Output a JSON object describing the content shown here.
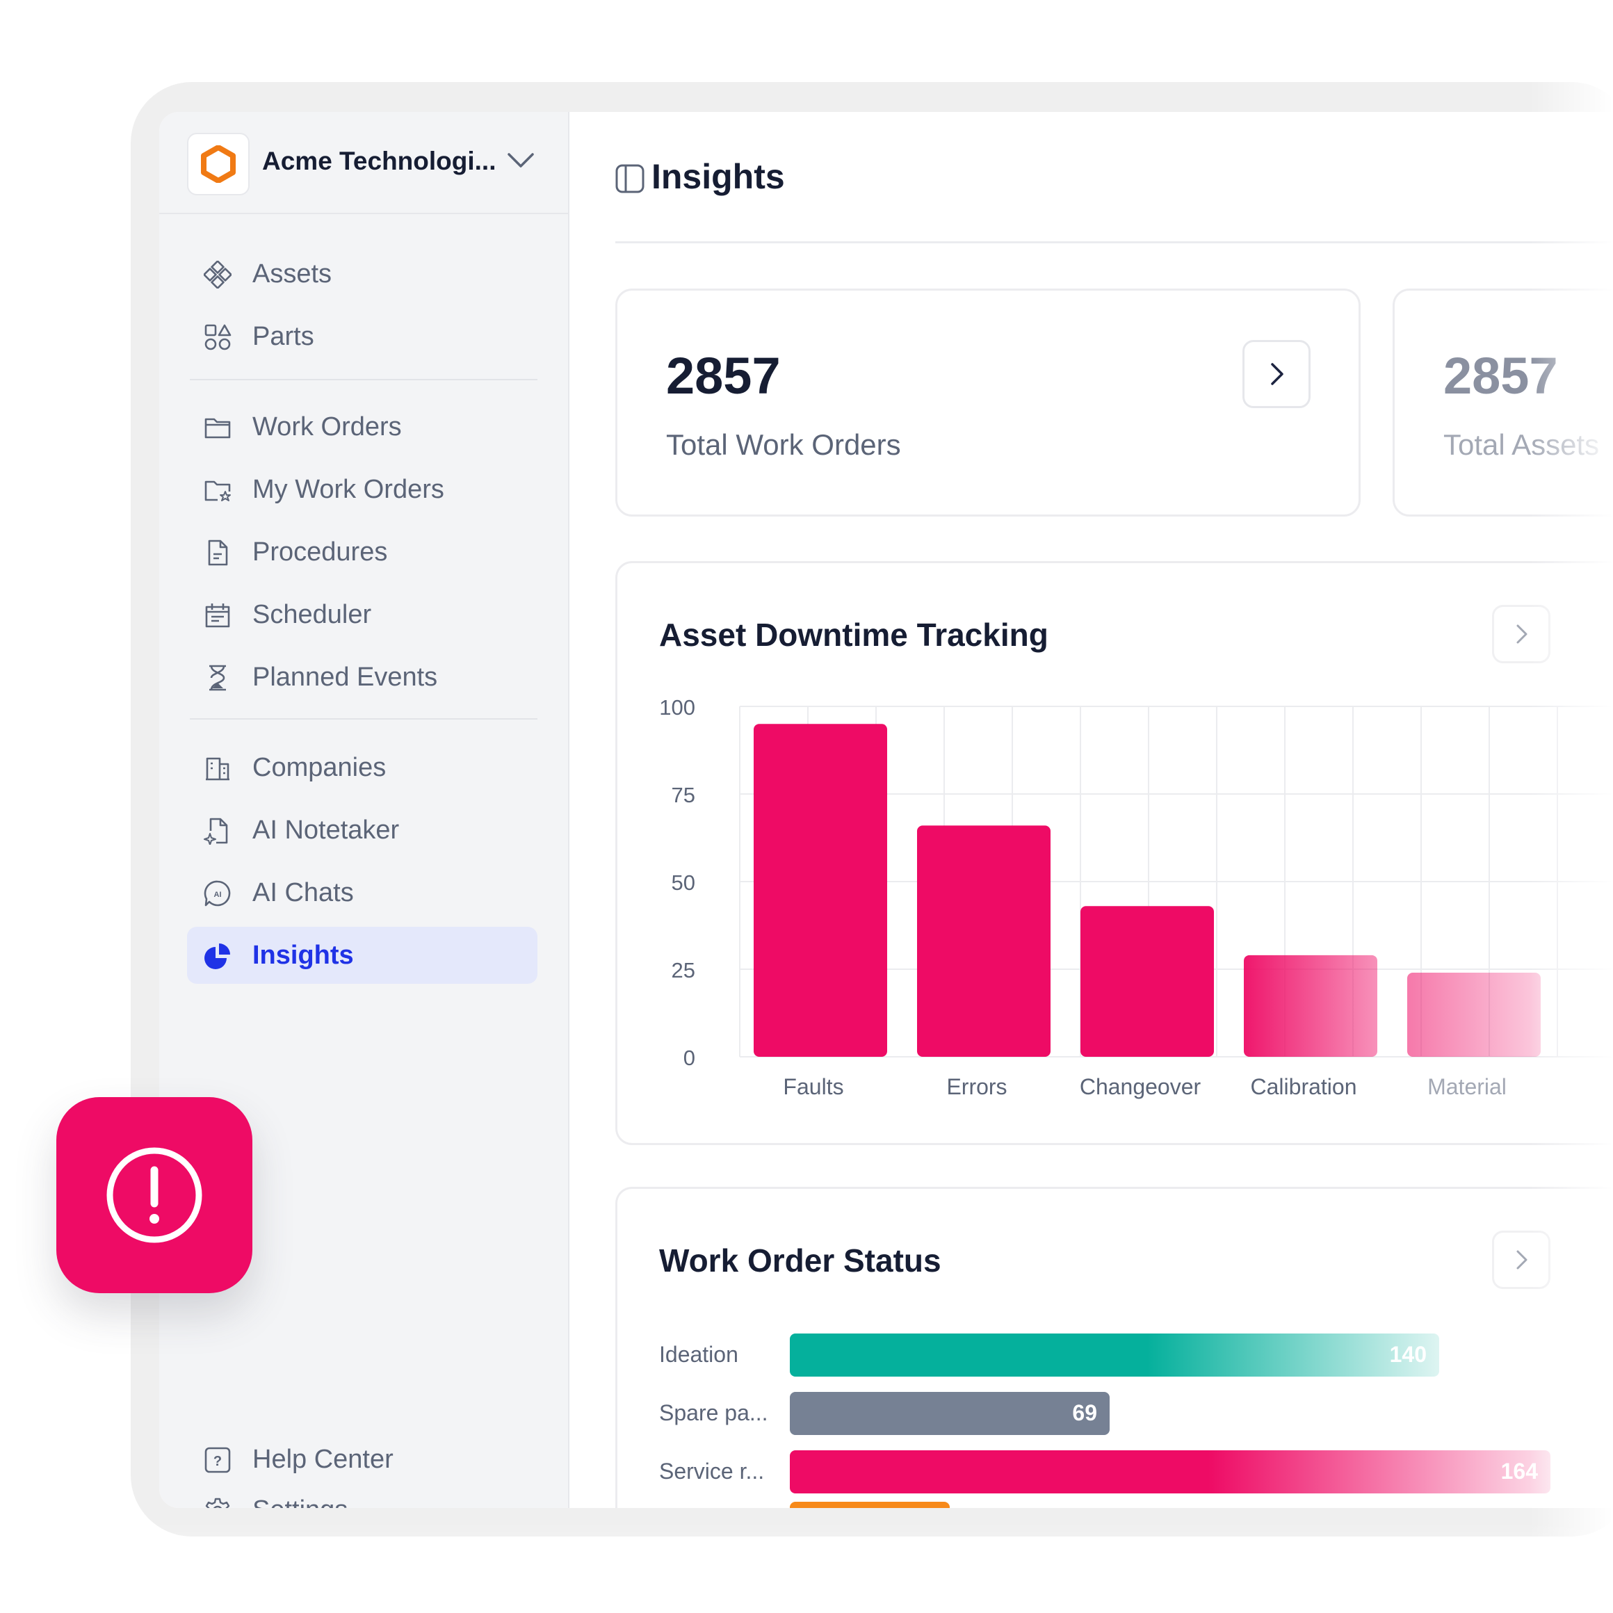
{
  "sidebar": {
    "company_name": "Acme Technologi...",
    "items": [
      {
        "label": "Assets",
        "icon": "assets-icon"
      },
      {
        "label": "Parts",
        "icon": "parts-icon"
      },
      {
        "label": "Work Orders",
        "icon": "folder-icon"
      },
      {
        "label": "My Work Orders",
        "icon": "folder-star-icon"
      },
      {
        "label": "Procedures",
        "icon": "document-icon"
      },
      {
        "label": "Scheduler",
        "icon": "calendar-icon"
      },
      {
        "label": "Planned Events",
        "icon": "hourglass-icon"
      },
      {
        "label": "Companies",
        "icon": "building-icon"
      },
      {
        "label": "AI Notetaker",
        "icon": "ai-note-icon"
      },
      {
        "label": "AI Chats",
        "icon": "ai-chat-icon"
      },
      {
        "label": "Insights",
        "icon": "pie-chart-icon",
        "active": true
      }
    ],
    "footer": [
      {
        "label": "Settings",
        "icon": "gear-icon"
      },
      {
        "label": "Help Center",
        "icon": "help-icon"
      }
    ]
  },
  "header": {
    "title": "Insights"
  },
  "kpis": [
    {
      "value": "2857",
      "label": "Total Work Orders"
    },
    {
      "value": "2857",
      "label": "Total Assets"
    }
  ],
  "downtime": {
    "title": "Asset Downtime Tracking",
    "chart_data": {
      "type": "bar",
      "categories": [
        "Faults",
        "Errors",
        "Changeover",
        "Calibration",
        "Material"
      ],
      "values": [
        95,
        66,
        43,
        29,
        24
      ],
      "ylim": [
        0,
        100
      ],
      "yticks": [
        "100",
        "75",
        "50",
        "25",
        "0"
      ],
      "grid": true,
      "color": "#ee0b65"
    }
  },
  "status": {
    "title": "Work Order Status",
    "chart_data": {
      "type": "bar",
      "orientation": "horizontal",
      "categories": [
        "Ideation",
        "Spare pa...",
        "Service r..."
      ],
      "values": [
        140,
        69,
        164
      ],
      "colors": [
        "#05b09c",
        "#768194",
        "#ee0b65"
      ]
    }
  },
  "colors": {
    "accent": "#1f32e6",
    "brand": "#f07a14",
    "alert": "#ee0b65"
  }
}
